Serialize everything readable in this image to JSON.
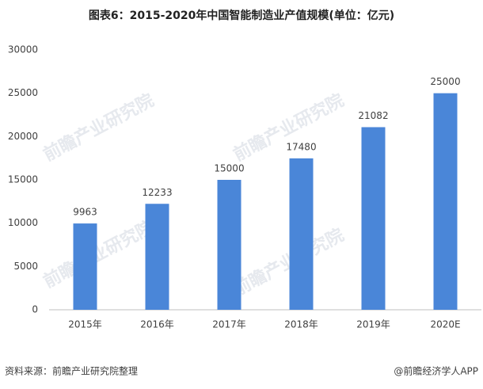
{
  "chart_data": {
    "type": "bar",
    "title": "图表6：2015-2020年中国智能制造业产值规模(单位：亿元)",
    "categories": [
      "2015年",
      "2016年",
      "2017年",
      "2018年",
      "2019年",
      "2020E"
    ],
    "values": [
      9963,
      12233,
      15000,
      17480,
      21082,
      25000
    ],
    "color": "#4a86d8",
    "ylim": [
      0,
      30000
    ],
    "yticks": [
      0,
      5000,
      10000,
      15000,
      20000,
      25000,
      30000
    ],
    "grid": false,
    "source": "资料来源：前瞻产业研究院整理",
    "credit": "@前瞻经济学人APP",
    "watermark": "前瞻产业研究院"
  }
}
